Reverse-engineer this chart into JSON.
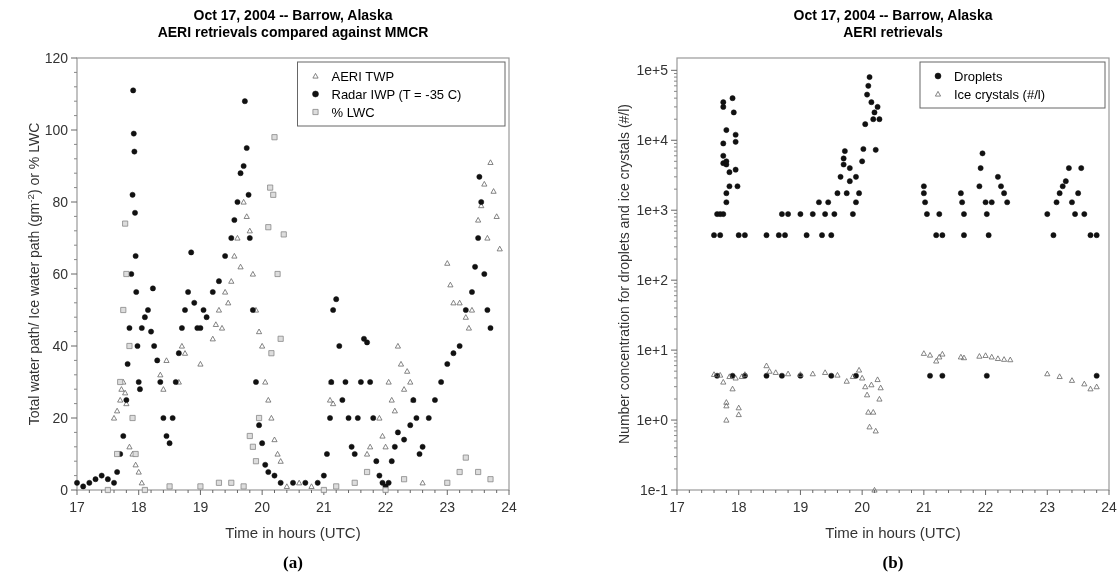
{
  "chart_data": [
    {
      "type": "scatter",
      "title": "Oct 17, 2004    --     Barrow, Alaska",
      "subtitle": "AERI retrievals compared against MMCR",
      "xlabel": "Time in hours (UTC)",
      "ylabel": "Total water path/ Ice water path (gm$^{-2}$) or % LWC",
      "annotations": [
        "(a)"
      ],
      "xlim": [
        17,
        24
      ],
      "xticks": [
        17,
        18,
        19,
        20,
        21,
        22,
        23,
        24
      ],
      "ylim": [
        0,
        120
      ],
      "yticks": [
        0,
        20,
        40,
        60,
        80,
        100,
        120
      ],
      "grid": false,
      "legend": "top right",
      "series": [
        {
          "name": "AERI TWP",
          "color": "#666666",
          "marker": "triangle",
          "x": [
            17.6,
            17.65,
            17.7,
            17.72,
            17.75,
            17.78,
            17.8,
            17.85,
            17.9,
            17.95,
            18.0,
            18.05,
            18.35,
            18.4,
            18.45,
            18.65,
            18.7,
            18.75,
            19.0,
            19.2,
            19.25,
            19.3,
            19.35,
            19.4,
            19.45,
            19.5,
            19.55,
            19.6,
            19.65,
            19.7,
            19.75,
            19.8,
            19.85,
            19.9,
            19.95,
            20.0,
            20.05,
            20.1,
            20.15,
            20.2,
            20.25,
            20.3,
            20.4,
            20.6,
            20.8,
            21.1,
            21.12,
            21.15,
            21.7,
            21.75,
            21.9,
            21.95,
            22.0,
            22.05,
            22.1,
            22.15,
            22.2,
            22.25,
            22.3,
            22.35,
            22.4,
            22.45,
            22.6,
            23.0,
            23.05,
            23.1,
            23.2,
            23.3,
            23.35,
            23.4,
            23.5,
            23.55,
            23.6,
            23.65,
            23.7,
            23.75,
            23.8,
            23.85
          ],
          "values": [
            20,
            22,
            25,
            28,
            30,
            27,
            24,
            12,
            10,
            7,
            5,
            2,
            32,
            28,
            36,
            30,
            40,
            38,
            35,
            42,
            46,
            50,
            45,
            55,
            52,
            58,
            65,
            70,
            62,
            80,
            76,
            72,
            60,
            50,
            44,
            40,
            30,
            25,
            20,
            14,
            10,
            8,
            1,
            2,
            1,
            25,
            30,
            24,
            10,
            12,
            20,
            15,
            12,
            30,
            25,
            22,
            40,
            35,
            28,
            33,
            30,
            25,
            2,
            63,
            57,
            52,
            52,
            48,
            45,
            50,
            75,
            79,
            85,
            70,
            91,
            83,
            76,
            67
          ]
        },
        {
          "name": "Radar IWP (T = -35 C)",
          "color": "#111111",
          "marker": "circle",
          "x": [
            17.0,
            17.1,
            17.2,
            17.3,
            17.4,
            17.5,
            17.6,
            17.65,
            17.7,
            17.75,
            17.8,
            17.82,
            17.85,
            17.88,
            17.9,
            17.91,
            17.92,
            17.93,
            17.94,
            17.95,
            17.96,
            17.98,
            18.0,
            18.02,
            18.05,
            18.1,
            18.15,
            18.2,
            18.23,
            18.25,
            18.3,
            18.35,
            18.4,
            18.45,
            18.5,
            18.55,
            18.6,
            18.65,
            18.7,
            18.75,
            18.8,
            18.85,
            18.9,
            18.95,
            19.0,
            19.05,
            19.1,
            19.2,
            19.3,
            19.4,
            19.5,
            19.55,
            19.6,
            19.65,
            19.7,
            19.72,
            19.75,
            19.78,
            19.8,
            19.85,
            19.9,
            19.95,
            20.0,
            20.05,
            20.1,
            20.2,
            20.3,
            20.5,
            20.7,
            20.9,
            21.0,
            21.05,
            21.1,
            21.12,
            21.15,
            21.2,
            21.25,
            21.3,
            21.35,
            21.4,
            21.45,
            21.5,
            21.55,
            21.6,
            21.65,
            21.7,
            21.75,
            21.8,
            21.85,
            21.9,
            21.95,
            22.0,
            22.05,
            22.1,
            22.15,
            22.2,
            22.3,
            22.4,
            22.45,
            22.5,
            22.55,
            22.6,
            22.7,
            22.8,
            22.9,
            23.0,
            23.1,
            23.2,
            23.3,
            23.4,
            23.45,
            23.5,
            23.52,
            23.55,
            23.6,
            23.65,
            23.7
          ],
          "values": [
            2,
            1,
            2,
            3,
            4,
            3,
            2,
            5,
            10,
            15,
            25,
            35,
            45,
            60,
            82,
            111,
            99,
            94,
            77,
            65,
            55,
            40,
            30,
            28,
            45,
            48,
            50,
            44,
            56,
            40,
            36,
            30,
            20,
            15,
            13,
            20,
            30,
            38,
            45,
            50,
            55,
            66,
            52,
            45,
            45,
            50,
            48,
            55,
            58,
            65,
            70,
            75,
            80,
            88,
            90,
            108,
            95,
            82,
            70,
            50,
            30,
            18,
            13,
            7,
            5,
            4,
            2,
            2,
            2,
            2,
            4,
            10,
            20,
            30,
            50,
            53,
            40,
            25,
            30,
            20,
            12,
            10,
            20,
            30,
            42,
            41,
            30,
            20,
            8,
            4,
            2,
            1,
            2,
            8,
            12,
            16,
            14,
            18,
            25,
            20,
            10,
            12,
            20,
            25,
            30,
            35,
            38,
            40,
            50,
            55,
            62,
            70,
            87,
            80,
            60,
            50,
            45
          ]
        },
        {
          "name": " % LWC",
          "color": "#888888",
          "marker": "square",
          "x": [
            17.5,
            17.65,
            17.7,
            17.75,
            17.78,
            17.8,
            17.85,
            17.9,
            17.95,
            18.1,
            18.5,
            19.0,
            19.3,
            19.5,
            19.7,
            19.8,
            19.85,
            19.9,
            19.95,
            20.1,
            20.13,
            20.15,
            20.18,
            20.2,
            20.25,
            20.3,
            20.35,
            21.0,
            21.2,
            21.5,
            21.7,
            22.0,
            22.3,
            23.0,
            23.2,
            23.3,
            23.5,
            23.7
          ],
          "values": [
            0,
            10,
            30,
            50,
            74,
            60,
            40,
            20,
            10,
            0,
            1,
            1,
            2,
            2,
            1,
            15,
            12,
            8,
            20,
            73,
            84,
            38,
            82,
            98,
            60,
            42,
            71,
            0,
            1,
            2,
            5,
            0,
            3,
            2,
            5,
            9,
            5,
            3
          ]
        }
      ]
    },
    {
      "type": "scatter",
      "title": "Oct 17, 2004    --     Barrow, Alaska",
      "subtitle": "AERI retrievals",
      "xlabel": "Time in hours (UTC)",
      "ylabel": "Number concentration for droplets and ice crystals (#/l)",
      "annotations": [
        "(b)"
      ],
      "log": true,
      "xlim": [
        17,
        24
      ],
      "xticks": [
        17,
        18,
        19,
        20,
        21,
        22,
        23,
        24
      ],
      "ylim": [
        0.1,
        150000
      ],
      "yticks": [
        {
          "value": 0.1,
          "label": "1e-1"
        },
        {
          "value": 1,
          "label": "1e+0"
        },
        {
          "value": 10,
          "label": "1e+1"
        },
        {
          "value": 100,
          "label": "1e+2"
        },
        {
          "value": 1000,
          "label": "1e+3"
        },
        {
          "value": 10000,
          "label": "1e+4"
        },
        {
          "value": 100000,
          "label": "1e+5"
        }
      ],
      "grid": false,
      "legend": "top right",
      "series": [
        {
          "name": "Droplets",
          "color": "#111111",
          "marker": "circle",
          "x": [
            17.6,
            17.65,
            17.7,
            17.7,
            17.75,
            17.75,
            17.75,
            17.75,
            17.75,
            17.75,
            17.8,
            17.8,
            17.8,
            17.8,
            17.8,
            17.85,
            17.85,
            17.9,
            17.92,
            17.95,
            17.95,
            17.95,
            17.98,
            18.0,
            18.1,
            18.45,
            18.65,
            18.7,
            18.75,
            18.8,
            19.0,
            19.1,
            19.2,
            19.3,
            19.35,
            19.4,
            19.45,
            19.5,
            19.55,
            19.6,
            19.65,
            19.7,
            19.7,
            19.72,
            19.75,
            19.8,
            19.8,
            19.85,
            19.9,
            19.9,
            19.95,
            20.0,
            20.02,
            20.05,
            20.08,
            20.1,
            20.12,
            20.15,
            20.18,
            20.2,
            20.22,
            20.25,
            20.28,
            21.0,
            21.0,
            21.02,
            21.05,
            21.2,
            21.25,
            21.3,
            21.6,
            21.62,
            21.65,
            21.65,
            21.9,
            21.92,
            21.95,
            22.0,
            22.02,
            22.05,
            22.1,
            22.2,
            22.25,
            22.3,
            22.35,
            23.0,
            23.1,
            23.15,
            23.2,
            23.25,
            23.3,
            23.35,
            23.4,
            23.45,
            23.5,
            23.55,
            23.6,
            23.7,
            23.8,
            17.65,
            17.9,
            18.1,
            18.45,
            18.7,
            19.0,
            19.5,
            19.9,
            21.1,
            21.3,
            22.02,
            23.8
          ],
          "values": [
            440,
            880,
            440,
            880,
            35000,
            30000,
            9000,
            6000,
            4700,
            880,
            1300,
            4500,
            5000,
            14000,
            1750,
            2200,
            3500,
            40000,
            25000,
            12000,
            9500,
            3800,
            2200,
            440,
            440,
            440,
            440,
            880,
            440,
            880,
            880,
            440,
            880,
            1300,
            440,
            880,
            1300,
            440,
            880,
            1750,
            3000,
            4500,
            5500,
            7000,
            1750,
            2600,
            4000,
            880,
            1300,
            3000,
            1750,
            5000,
            7500,
            17000,
            45000,
            60000,
            80000,
            35000,
            20000,
            25000,
            7300,
            30000,
            20000,
            2200,
            1750,
            1300,
            880,
            440,
            880,
            440,
            1750,
            1300,
            880,
            440,
            2200,
            4000,
            6500,
            1300,
            880,
            440,
            1300,
            3000,
            2200,
            1750,
            1300,
            880,
            440,
            1300,
            1750,
            2200,
            2600,
            4000,
            1300,
            880,
            1750,
            4000,
            880,
            440,
            440,
            4.3,
            4.3,
            4.3,
            4.3,
            4.3,
            4.3,
            4.3,
            4.3,
            4.3,
            4.3,
            4.3,
            4.3
          ]
        },
        {
          "name": "Ice crystals (#/l)",
          "color": "#666666",
          "marker": "triangle",
          "x": [
            17.6,
            17.7,
            17.75,
            17.8,
            17.8,
            17.8,
            17.85,
            17.9,
            17.95,
            18.0,
            18.0,
            18.05,
            18.1,
            18.45,
            18.5,
            18.6,
            18.8,
            19.0,
            19.2,
            19.4,
            19.6,
            19.75,
            19.85,
            19.95,
            20.0,
            20.05,
            20.08,
            20.1,
            20.12,
            20.15,
            20.18,
            20.2,
            20.22,
            20.25,
            20.28,
            20.3,
            21.0,
            21.1,
            21.2,
            21.25,
            21.3,
            21.6,
            21.65,
            21.9,
            22.0,
            22.1,
            22.2,
            22.3,
            22.4,
            23.0,
            23.2,
            23.4,
            23.6,
            23.7,
            23.8
          ],
          "values": [
            4.5,
            4.4,
            3.5,
            1.8,
            1.6,
            1.0,
            4.2,
            2.8,
            4.0,
            1.5,
            1.2,
            4.2,
            4.5,
            6.0,
            5.0,
            4.8,
            4.6,
            4.5,
            4.6,
            4.8,
            4.4,
            3.6,
            4.2,
            5.2,
            4.0,
            3.0,
            2.3,
            1.3,
            0.8,
            3.2,
            1.3,
            0.1,
            0.7,
            3.8,
            2.0,
            2.9,
            9.0,
            8.5,
            7.0,
            8.0,
            8.8,
            8.0,
            7.8,
            8.2,
            8.4,
            8.0,
            7.6,
            7.4,
            7.3,
            4.6,
            4.2,
            3.7,
            3.3,
            2.8,
            3.0
          ]
        }
      ]
    }
  ]
}
